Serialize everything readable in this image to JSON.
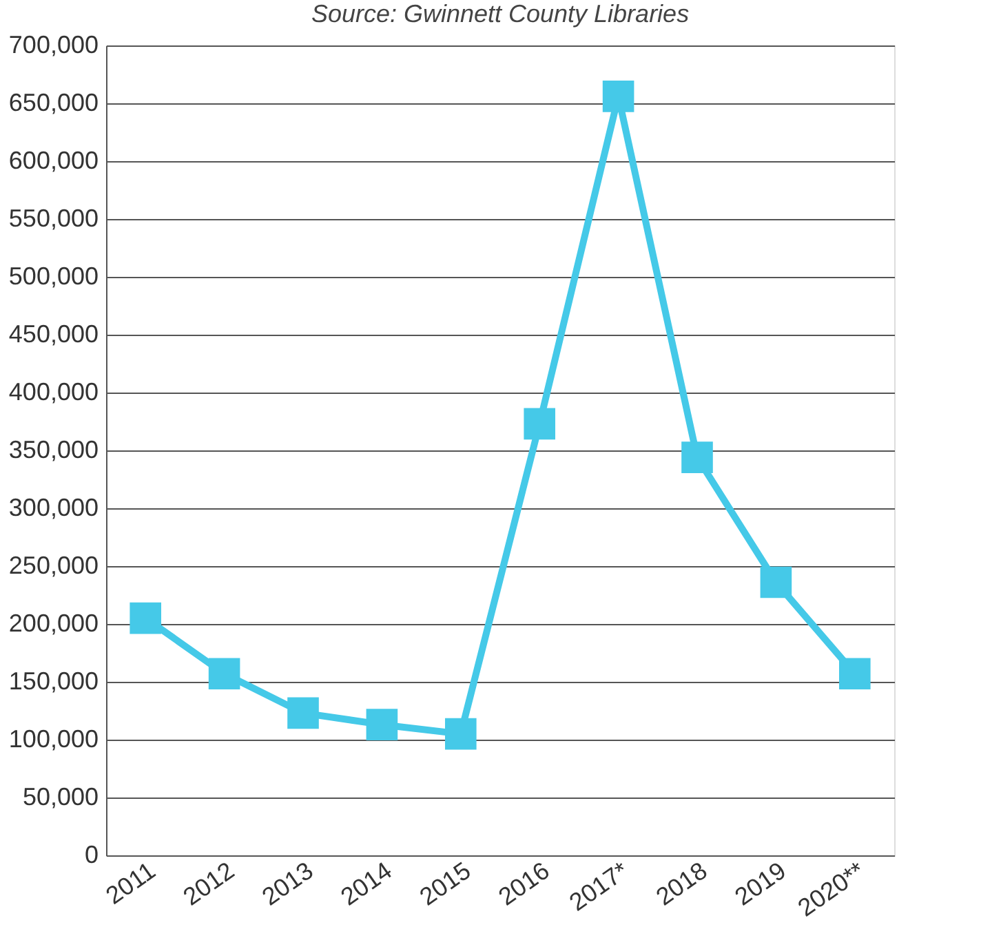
{
  "chart_data": {
    "type": "line",
    "annotations": [
      "Source: Gwinnett County Libraries"
    ],
    "categories": [
      "2011",
      "2012",
      "2013",
      "2014",
      "2015",
      "2016",
      "2017*",
      "2018",
      "2019",
      "2020**"
    ],
    "series": [
      {
        "color": "#45c9e8",
        "values": [
          205000,
          157000,
          123000,
          113000,
          105000,
          373000,
          656000,
          344000,
          236000,
          157000
        ]
      }
    ],
    "ylim": [
      0,
      700000
    ],
    "yticks": [
      {
        "value": 0,
        "label": "0"
      },
      {
        "value": 50000,
        "label": "50,000"
      },
      {
        "value": 100000,
        "label": "100,000"
      },
      {
        "value": 150000,
        "label": "150,000"
      },
      {
        "value": 200000,
        "label": "200,000"
      },
      {
        "value": 250000,
        "label": "250,000"
      },
      {
        "value": 300000,
        "label": "300,000"
      },
      {
        "value": 350000,
        "label": "350,000"
      },
      {
        "value": 400000,
        "label": "400,000"
      },
      {
        "value": 450000,
        "label": "450,000"
      },
      {
        "value": 500000,
        "label": "500,000"
      },
      {
        "value": 550000,
        "label": "550,000"
      },
      {
        "value": 600000,
        "label": "600,000"
      },
      {
        "value": 650000,
        "label": "650,000"
      },
      {
        "value": 700000,
        "label": "700,000"
      }
    ],
    "grid": "y",
    "marker": "square",
    "line_style": "solid",
    "legend": false
  }
}
